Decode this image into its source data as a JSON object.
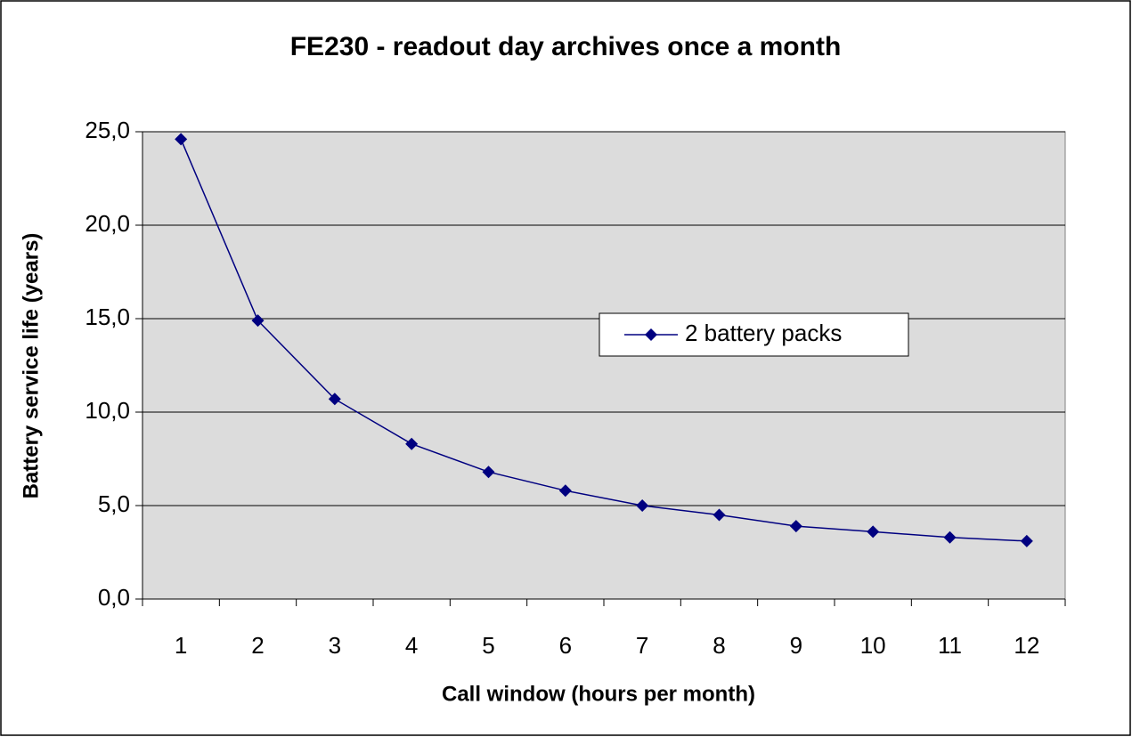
{
  "chart_data": {
    "type": "line",
    "title": "FE230 - readout day archives once a month",
    "x_label": "Call window (hours per month)",
    "y_label": "Battery service life (years)",
    "categories": [
      "1",
      "2",
      "3",
      "4",
      "5",
      "6",
      "7",
      "8",
      "9",
      "10",
      "11",
      "12"
    ],
    "series": [
      {
        "name": "2 battery packs",
        "color": "#000080",
        "values": [
          24.6,
          14.9,
          10.7,
          8.3,
          6.8,
          5.8,
          5.0,
          4.5,
          3.9,
          3.6,
          3.3,
          3.1
        ]
      }
    ],
    "ylim": [
      0,
      25
    ],
    "yticks": [
      {
        "value": 0,
        "label": "0,0"
      },
      {
        "value": 5,
        "label": "5,0"
      },
      {
        "value": 10,
        "label": "10,0"
      },
      {
        "value": 15,
        "label": "15,0"
      },
      {
        "value": 20,
        "label": "20,0"
      },
      {
        "value": 25,
        "label": "25,0"
      }
    ],
    "grid": true,
    "legend": "right"
  }
}
